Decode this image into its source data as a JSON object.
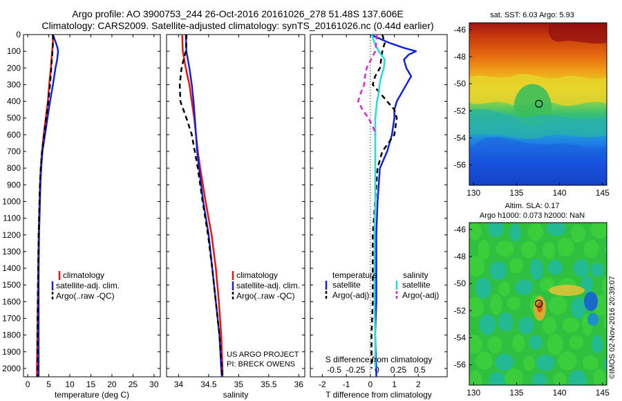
{
  "title_line1": "Argo profile: AO 3900753_244 26-Oct-2016 20161026_278 51.48S 137.606E",
  "title_line2": "Climatology: CARS2009. Satellite-adjusted climatology: synTS_20161026.nc (0.44d earlier)",
  "sst_title": "sat. SST: 6.03 Argo: 5.93",
  "sla_title1": "Altim. SLA: 0.17",
  "sla_title2": "Argo h1000: 0.073 h2000: NaN",
  "credit": "©IMOS 02-Nov-2016 20:39:07",
  "project_line1": "US ARGO PROJECT",
  "project_line2": "PI: BRECK OWENS",
  "colors": {
    "climatology": "#ee1111",
    "satellite": "#1122dd",
    "argo": "#000000",
    "sal_satellite": "#22dddd",
    "sal_argo": "#dd22dd"
  },
  "chart_data": [
    {
      "type": "line",
      "id": "temperature",
      "xlabel": "temperature (deg C)",
      "xlim": [
        -1,
        31.5
      ],
      "ylim": [
        0,
        2050
      ],
      "y_inverted": true,
      "xticks": [
        0,
        5,
        10,
        15,
        20,
        25,
        30
      ],
      "xtick_labels": [
        "0",
        "5",
        "10",
        "15",
        "20",
        "25",
        "30"
      ],
      "yticks": [
        0,
        100,
        200,
        300,
        400,
        500,
        600,
        700,
        800,
        900,
        1000,
        1100,
        1200,
        1300,
        1400,
        1500,
        1600,
        1700,
        1800,
        1900,
        2000
      ],
      "ytick_labels": [
        "0",
        "100",
        "200",
        "300",
        "400",
        "500",
        "600",
        "700",
        "800",
        "900",
        "1000",
        "1100",
        "1200",
        "1300",
        "1400",
        "1500",
        "1600",
        "1700",
        "1800",
        "1900",
        "2000"
      ],
      "legend": [
        "climatology",
        "satellite-adj. clim.",
        "Argo(..raw -QC)"
      ],
      "series": [
        {
          "name": "climatology",
          "color": "climatology",
          "depth": [
            0,
            50,
            100,
            200,
            300,
            400,
            500,
            600,
            700,
            800,
            900,
            1000,
            1200,
            1400,
            1600,
            1800,
            2000,
            2050
          ],
          "values": [
            6.0,
            6.0,
            5.8,
            5.5,
            5.1,
            4.8,
            4.3,
            3.8,
            3.4,
            3.1,
            2.9,
            2.8,
            2.6,
            2.5,
            2.4,
            2.3,
            2.2,
            2.2
          ]
        },
        {
          "name": "satellite-adj. clim.",
          "color": "satellite",
          "depth": [
            0,
            50,
            80,
            100,
            150,
            200,
            300,
            400,
            500,
            600,
            700,
            800,
            900,
            1000,
            1200,
            1400,
            1600,
            1800,
            2000,
            2050
          ],
          "values": [
            6.0,
            6.7,
            7.1,
            7.2,
            7.0,
            6.6,
            6.0,
            5.3,
            4.7,
            4.1,
            3.5,
            3.2,
            3.0,
            2.9,
            2.7,
            2.6,
            2.6,
            2.6,
            2.6,
            2.6
          ]
        },
        {
          "name": "Argo(..raw -QC)",
          "color": "argo",
          "dashed": true,
          "depth": [
            0,
            50,
            100,
            200,
            300,
            400,
            500,
            600,
            700,
            800,
            900,
            1000,
            1200,
            1400,
            1600,
            1800,
            2000,
            2050
          ],
          "values": [
            6.0,
            6.0,
            5.9,
            5.6,
            5.3,
            4.9,
            4.4,
            3.9,
            3.4,
            3.1,
            2.9,
            2.8,
            2.6,
            2.5,
            2.4,
            2.3,
            2.3,
            2.3
          ]
        }
      ]
    },
    {
      "type": "line",
      "id": "salinity",
      "xlabel": "salinity",
      "xlim": [
        33.8,
        36.1
      ],
      "ylim": [
        0,
        2050
      ],
      "y_inverted": true,
      "xticks": [
        34,
        34.5,
        35,
        35.5,
        36
      ],
      "xtick_labels": [
        "34",
        "34.5",
        "35",
        "35.5",
        "36"
      ],
      "legend": [
        "climatology",
        "satellite-adj. clim.",
        "Argo(..raw -QC)"
      ],
      "series": [
        {
          "name": "climatology",
          "color": "climatology",
          "depth": [
            0,
            100,
            200,
            300,
            400,
            500,
            600,
            700,
            800,
            1000,
            1200,
            1400,
            1600,
            1800,
            2000,
            2050
          ],
          "values": [
            34.06,
            34.07,
            34.12,
            34.18,
            34.22,
            34.26,
            34.29,
            34.32,
            34.36,
            34.45,
            34.55,
            34.62,
            34.67,
            34.71,
            34.73,
            34.73
          ]
        },
        {
          "name": "satellite-adj. clim.",
          "color": "satellite",
          "depth": [
            0,
            100,
            200,
            300,
            400,
            500,
            600,
            700,
            800,
            1000,
            1200,
            1400,
            1600,
            1800,
            2000,
            2050
          ],
          "values": [
            34.12,
            34.13,
            34.18,
            34.22,
            34.25,
            34.27,
            34.29,
            34.31,
            34.34,
            34.41,
            34.5,
            34.56,
            34.62,
            34.68,
            34.71,
            34.72
          ]
        },
        {
          "name": "Argo(..raw -QC)",
          "color": "argo",
          "dashed": true,
          "depth": [
            0,
            50,
            100,
            200,
            300,
            400,
            500,
            600,
            700,
            800,
            1000,
            1200,
            1400,
            1600,
            1800,
            2000,
            2050
          ],
          "values": [
            34.13,
            34.13,
            34.12,
            34.05,
            34.02,
            34.03,
            34.13,
            34.22,
            34.27,
            34.32,
            34.4,
            34.49,
            34.56,
            34.62,
            34.68,
            34.72,
            34.73
          ]
        }
      ]
    },
    {
      "type": "line",
      "id": "difference",
      "xlabel": "T difference from climatology",
      "xlabel_top": "S difference from climatology",
      "xlim": [
        -2.5,
        3.2
      ],
      "xlim_salinity": [
        -0.78,
        0.82
      ],
      "ylim": [
        0,
        2050
      ],
      "y_inverted": true,
      "xticks": [
        -2,
        -1,
        0,
        1,
        2
      ],
      "xtick_labels": [
        "-2",
        "-1",
        "0",
        "1",
        "2"
      ],
      "xticks_salinity": [
        -0.5,
        -0.25,
        0,
        0.25,
        0.5
      ],
      "xtick_labels_salinity": [
        "-0.5",
        "-0.25",
        "0",
        "0.25",
        "0.5"
      ],
      "legend_temperature_header": "temperature",
      "legend_salinity_header": "salinity",
      "legend_entries": [
        "satellite",
        "Argo(-adj)",
        "satellite",
        "Argo(-adj)"
      ],
      "series": [
        {
          "name": "satellite",
          "group": "temperature",
          "color": "satellite",
          "axis": "T",
          "depth": [
            0,
            50,
            80,
            100,
            120,
            150,
            200,
            250,
            300,
            350,
            400,
            450,
            500,
            600,
            700,
            800,
            1000,
            1200,
            1400,
            1600,
            1800,
            2000,
            2050
          ],
          "values": [
            0.0,
            0.8,
            1.4,
            1.9,
            1.6,
            1.4,
            1.5,
            1.7,
            1.5,
            1.3,
            1.1,
            1.0,
            1.0,
            0.9,
            0.7,
            0.4,
            0.3,
            0.25,
            0.25,
            0.25,
            0.2,
            0.25,
            0.25
          ]
        },
        {
          "name": "Argo(-adj)",
          "group": "temperature",
          "color": "argo",
          "axis": "T",
          "dashed": true,
          "depth": [
            0,
            50,
            100,
            200,
            250,
            300,
            350,
            400,
            450,
            500,
            600,
            700,
            800,
            1000,
            1200,
            1400,
            1600,
            1800,
            2000
          ],
          "values": [
            0.5,
            0.6,
            0.5,
            0.4,
            0.2,
            0.1,
            0.4,
            0.7,
            1.0,
            1.1,
            1.0,
            0.5,
            0.3,
            0.2,
            0.1,
            0.1,
            0.1,
            0.05,
            0.05
          ]
        },
        {
          "name": "satellite",
          "group": "salinity",
          "color": "sal_satellite",
          "axis": "S",
          "depth": [
            0,
            50,
            100,
            150,
            200,
            250,
            300,
            350,
            400,
            450,
            500,
            600,
            700,
            800,
            1000,
            1200,
            1400,
            1600,
            1800,
            2000
          ],
          "values": [
            -0.06,
            -0.03,
            0.02,
            0.09,
            0.08,
            0.05,
            0.03,
            0.02,
            0.0,
            -0.01,
            -0.02,
            -0.02,
            -0.02,
            -0.02,
            -0.02,
            -0.03,
            -0.03,
            -0.03,
            -0.02,
            -0.02
          ]
        },
        {
          "name": "Argo(-adj)",
          "group": "salinity",
          "color": "sal_argo",
          "axis": "S",
          "dashed": true,
          "depth": [
            0,
            100,
            150,
            200,
            250,
            300,
            350,
            400,
            450,
            500,
            550,
            600
          ],
          "values": [
            0.0,
            -0.02,
            -0.07,
            -0.12,
            -0.14,
            -0.15,
            -0.19,
            -0.22,
            -0.17,
            -0.1,
            -0.05,
            -0.01
          ]
        }
      ]
    },
    {
      "type": "heatmap",
      "id": "sst_map",
      "title": "sat. SST: 6.03 Argo: 5.93",
      "xlim": [
        129.5,
        145.5
      ],
      "ylim": [
        -57.5,
        -45.5
      ],
      "xticks": [
        130,
        135,
        140,
        145
      ],
      "xtick_labels": [
        "130",
        "135",
        "140",
        "145"
      ],
      "yticks": [
        -46,
        -48,
        -50,
        -52,
        -54,
        -56
      ],
      "ytick_labels": [
        "-46",
        "-48",
        "-50",
        "-52",
        "-54",
        "-56"
      ],
      "marker": {
        "lon": 137.6,
        "lat": -51.48
      }
    },
    {
      "type": "heatmap",
      "id": "sla_map",
      "title": "Altim. SLA: 0.17",
      "subtitle": "Argo h1000: 0.073 h2000: NaN",
      "xlim": [
        129.5,
        145.5
      ],
      "ylim": [
        -57.5,
        -45.5
      ],
      "xticks": [
        130,
        135,
        140,
        145
      ],
      "xtick_labels": [
        "130",
        "135",
        "140",
        "145"
      ],
      "yticks": [
        -46,
        -48,
        -50,
        -52,
        -54,
        -56
      ],
      "ytick_labels": [
        "-46",
        "-48",
        "-50",
        "-52",
        "-54",
        "-56"
      ],
      "marker": {
        "lon": 137.6,
        "lat": -51.48
      }
    }
  ]
}
